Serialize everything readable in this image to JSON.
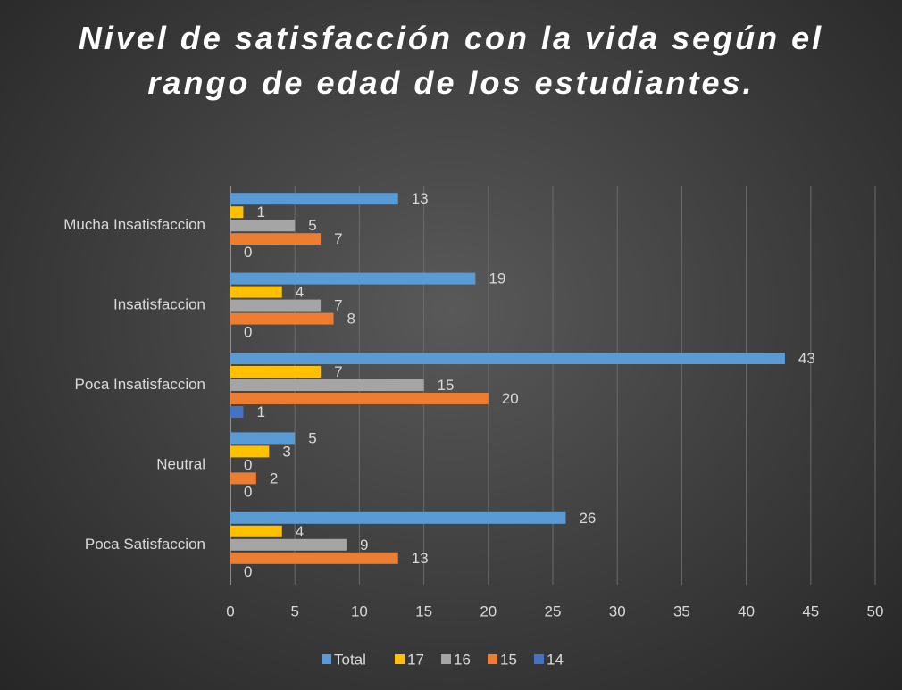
{
  "chart_data": {
    "type": "bar",
    "orientation": "horizontal",
    "title": "Nivel de satisfacción con la vida según el rango de edad de los estudiantes.",
    "categories": [
      "Poca Satisfaccion",
      "Neutral",
      "Poca Insatisfaccion",
      "Insatisfaccion",
      "Mucha Insatisfaccion"
    ],
    "series": [
      {
        "name": "Total",
        "color": "#5b9bd5",
        "values": [
          26,
          5,
          43,
          19,
          13
        ]
      },
      {
        "name": "17",
        "color": "#ffc000",
        "values": [
          4,
          3,
          7,
          4,
          1
        ]
      },
      {
        "name": "16",
        "color": "#a5a5a5",
        "values": [
          9,
          0,
          15,
          7,
          5
        ]
      },
      {
        "name": "15",
        "color": "#ed7d31",
        "values": [
          13,
          2,
          20,
          8,
          7
        ]
      },
      {
        "name": "14",
        "color": "#4472c4",
        "values": [
          0,
          0,
          1,
          0,
          0
        ]
      }
    ],
    "xlim": [
      0,
      50
    ],
    "xticks": [
      0,
      5,
      10,
      15,
      20,
      25,
      30,
      35,
      40,
      45,
      50
    ],
    "grid": true,
    "legend": "bottom"
  }
}
